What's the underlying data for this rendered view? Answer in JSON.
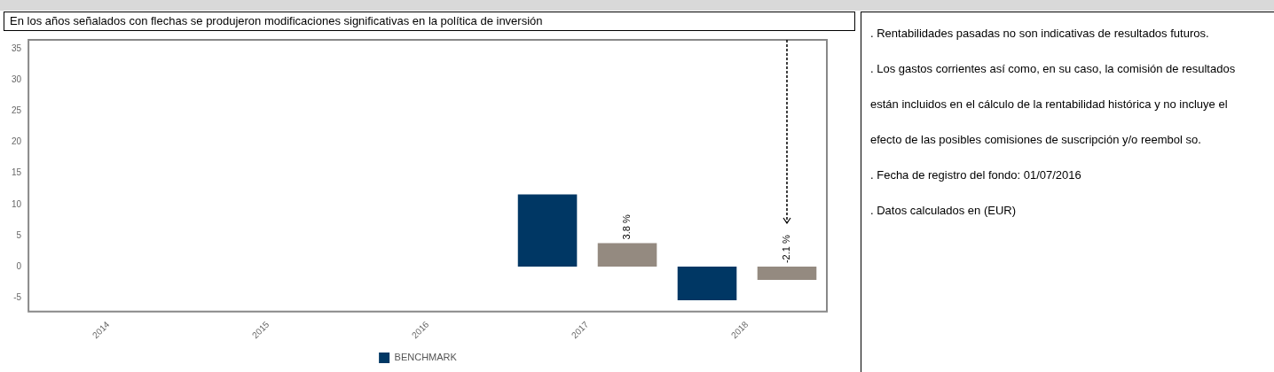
{
  "chart_data": {
    "type": "bar",
    "title": "En los años señalados con flechas se produjeron modificaciones significativas en la política de inversión",
    "categories": [
      "2014",
      "2015",
      "2016",
      "2017",
      "2018"
    ],
    "series": [
      {
        "name": "BENCHMARK",
        "color": "#003764",
        "values": [
          null,
          null,
          null,
          11.6,
          -5.4
        ]
      },
      {
        "color": "#948a80",
        "values": [
          null,
          null,
          null,
          3.8,
          -2.1
        ],
        "value_labels": [
          null,
          null,
          null,
          "3.8 %",
          "-2.1 %"
        ]
      }
    ],
    "ylim": [
      -7.2,
      36.4
    ],
    "yticks": [
      -5,
      0,
      5,
      10,
      15,
      20,
      25,
      30,
      35
    ],
    "grid": false,
    "legend": "bottom",
    "annotations": [
      ". Rentabilidades pasadas no son indicativas de resultados futuros.",
      ". Los gastos corrientes así como, en su caso, la comisión de resultados están incluidos en el cálculo de la rentabilidad histórica y no incluye el efecto de las posibles comisiones de suscripción y/o reembol so.",
      ". Fecha de registro del fondo: 01/07/2016",
      ". Datos calculados en (EUR)"
    ]
  }
}
